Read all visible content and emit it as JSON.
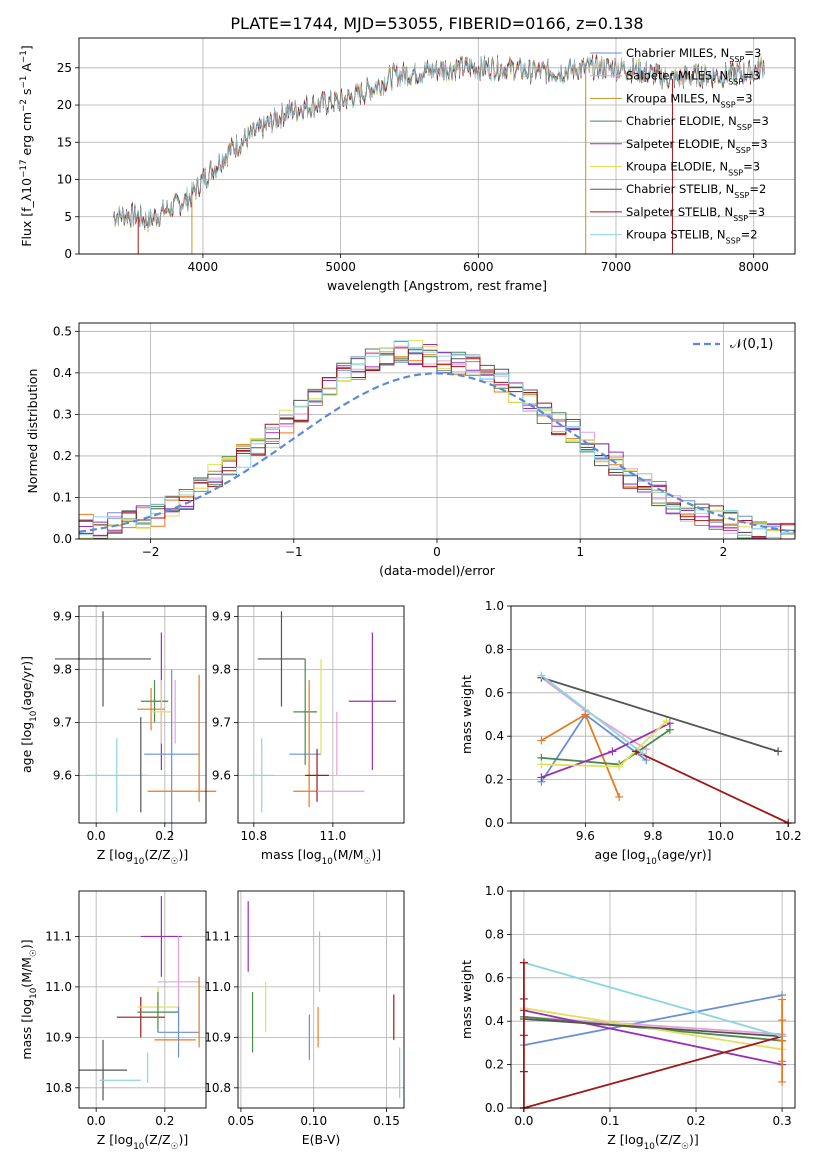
{
  "figure_title": "PLATE=1744, MJD=53055, FIBERID=0166, z=0.138",
  "colors": [
    "#6a8fd6",
    "#e8a0d8",
    "#c89024",
    "#4a8a4a",
    "#9b30b8",
    "#e0e05a",
    "#555555",
    "#a01818",
    "#8ad6e0"
  ],
  "legend_labels": [
    "Chabrier MILES, N_SSP=3",
    "Salpeter MILES, N_SSP=3",
    "Kroupa MILES, N_SSP=3",
    "Chabrier ELODIE, N_SSP=3",
    "Salpeter ELODIE, N_SSP=3",
    "Kroupa ELODIE, N_SSP=3",
    "Chabrier STELIB, N_SSP=2",
    "Salpeter STELIB, N_SSP=3",
    "Kroupa STELIB, N_SSP=2"
  ],
  "chart_data": [
    {
      "id": "spectrum",
      "type": "line",
      "xlabel": "wavelength [Angstrom, rest frame]",
      "ylabel": "Flux [f_λ10^-17 erg cm^-2 s^-1 A^-1]",
      "xlim": [
        3100,
        8300
      ],
      "ylim": [
        0,
        29
      ],
      "xticks": [
        4000,
        5000,
        6000,
        7000,
        8000
      ],
      "yticks": [
        0,
        5,
        10,
        15,
        20,
        25
      ],
      "continuum_x": [
        3350,
        3500,
        3600,
        3700,
        3800,
        3900,
        4000,
        4100,
        4200,
        4400,
        4600,
        4800,
        5000,
        5200,
        5400,
        5600,
        5800,
        6000,
        6200,
        6400,
        6600,
        6800,
        7000,
        7200,
        7400,
        7600,
        7800,
        8000,
        8080
      ],
      "continuum_y": [
        5.2,
        5.2,
        4.5,
        5.5,
        6.5,
        7.5,
        10,
        12,
        14,
        16.5,
        19,
        20,
        20.5,
        22,
        24,
        24.5,
        25,
        25,
        25,
        24.5,
        24.5,
        25,
        25,
        24.5,
        23.5,
        24,
        24,
        24.5,
        25.5
      ],
      "series": [
        "Chabrier MILES, N_SSP=3",
        "Salpeter MILES, N_SSP=3",
        "Kroupa MILES, N_SSP=3",
        "Chabrier ELODIE, N_SSP=3",
        "Salpeter ELODIE, N_SSP=3",
        "Kroupa ELODIE, N_SSP=3",
        "Chabrier STELIB, N_SSP=2",
        "Salpeter STELIB, N_SSP=3",
        "Kroupa STELIB, N_SSP=2"
      ],
      "drop_lines_x": [
        3530,
        3920,
        6780,
        7410
      ],
      "legend": "top-right"
    },
    {
      "id": "residuals",
      "type": "histogram",
      "xlabel": "(data-model)/error",
      "ylabel": "Normed distribution",
      "xlim": [
        -2.5,
        2.5
      ],
      "ylim": [
        0,
        0.52
      ],
      "xticks": [
        -2,
        -1,
        0,
        1,
        2
      ],
      "yticks": [
        0.0,
        0.1,
        0.2,
        0.3,
        0.4,
        0.5
      ],
      "bin_width": 0.1,
      "base_values": [
        0.03,
        0.03,
        0.04,
        0.04,
        0.05,
        0.06,
        0.08,
        0.1,
        0.12,
        0.15,
        0.17,
        0.2,
        0.23,
        0.25,
        0.28,
        0.31,
        0.34,
        0.36,
        0.4,
        0.41,
        0.43,
        0.44,
        0.45,
        0.45,
        0.44,
        0.43,
        0.42,
        0.42,
        0.4,
        0.38,
        0.35,
        0.33,
        0.3,
        0.28,
        0.26,
        0.23,
        0.2,
        0.18,
        0.15,
        0.13,
        0.11,
        0.09,
        0.07,
        0.06,
        0.05,
        0.04,
        0.03,
        0.03,
        0.02,
        0.02
      ],
      "normal_label": "𝒩(0,1)",
      "legend": "top-right"
    },
    {
      "id": "z_age",
      "type": "errorbar",
      "xlabel": "Z [log10(Z/Z☉)]",
      "ylabel": "age [log10(age/yr)]",
      "xlim": [
        -0.05,
        0.32
      ],
      "ylim": [
        9.51,
        9.92
      ],
      "xticks": [
        0.0,
        0.2
      ],
      "yticks": [
        9.6,
        9.7,
        9.8,
        9.9
      ],
      "points": [
        {
          "x": 0.02,
          "y": 9.82,
          "xerr": 0.14,
          "yerr": 0.09,
          "c": 6
        },
        {
          "x": 0.06,
          "y": 9.6,
          "xerr": 0.09,
          "yerr": 0.07,
          "c": 8
        },
        {
          "x": 0.13,
          "y": 9.62,
          "xerr": 0.0,
          "yerr": 0.09,
          "c": 6
        },
        {
          "x": 0.16,
          "y": 9.725,
          "xerr": 0.04,
          "yerr": 0.04,
          "c": 2
        },
        {
          "x": 0.17,
          "y": 9.74,
          "xerr": 0.04,
          "yerr": 0.04,
          "c": 3
        },
        {
          "x": 0.19,
          "y": 9.74,
          "xerr": 0.0,
          "yerr": 0.13,
          "c": 4
        },
        {
          "x": 0.19,
          "y": 9.72,
          "xerr": 0.03,
          "yerr": 0.06,
          "c": 5
        },
        {
          "x": 0.22,
          "y": 9.64,
          "xerr": 0.08,
          "yerr": 0.16,
          "c": 0
        },
        {
          "x": 0.23,
          "y": 9.72,
          "xerr": 0.0,
          "yerr": 0.06,
          "c": 1
        },
        {
          "x": 0.25,
          "y": 9.57,
          "xerr": 0.1,
          "yerr": 0.0,
          "c": 2
        },
        {
          "x": 0.3,
          "y": 9.67,
          "xerr": 0.0,
          "yerr": 0.12,
          "c": 2
        }
      ]
    },
    {
      "id": "mass_age",
      "type": "errorbar",
      "xlabel": "mass [log10(M/M☉)]",
      "ylabel": "",
      "xlim": [
        10.76,
        11.18
      ],
      "ylim": [
        9.51,
        9.92
      ],
      "xticks": [
        10.8,
        11.0
      ],
      "yticks": [
        9.6,
        9.7,
        9.8,
        9.9
      ],
      "points": [
        {
          "x": 10.82,
          "y": 9.6,
          "xerr": 0.03,
          "yerr": 0.07,
          "c": 8
        },
        {
          "x": 10.87,
          "y": 9.82,
          "xerr": 0.06,
          "yerr": 0.09,
          "c": 6
        },
        {
          "x": 10.93,
          "y": 9.57,
          "xerr": 0.03,
          "yerr": 0.0,
          "c": 2
        },
        {
          "x": 10.93,
          "y": 9.64,
          "xerr": 0.04,
          "yerr": 0.0,
          "c": 0
        },
        {
          "x": 10.93,
          "y": 9.72,
          "xerr": 0.03,
          "yerr": 0.1,
          "c": 3
        },
        {
          "x": 10.94,
          "y": 9.66,
          "xerr": 0.0,
          "yerr": 0.12,
          "c": 2
        },
        {
          "x": 10.96,
          "y": 9.6,
          "xerr": 0.03,
          "yerr": 0.05,
          "c": 7
        },
        {
          "x": 10.97,
          "y": 9.73,
          "xerr": 0.0,
          "yerr": 0.09,
          "c": 5
        },
        {
          "x": 11.02,
          "y": 9.57,
          "xerr": 0.06,
          "yerr": 0.0,
          "c": 1
        },
        {
          "x": 11.01,
          "y": 9.66,
          "xerr": 0.0,
          "yerr": 0.06,
          "c": 1
        },
        {
          "x": 11.1,
          "y": 9.74,
          "xerr": 0.06,
          "yerr": 0.13,
          "c": 4
        }
      ]
    },
    {
      "id": "age_weight",
      "type": "line",
      "xlabel": "age [log10(age/yr)]",
      "ylabel": "mass weight",
      "xlim": [
        9.38,
        10.22
      ],
      "ylim": [
        0,
        1
      ],
      "xticks": [
        9.6,
        9.8,
        10.0,
        10.2
      ],
      "yticks": [
        0.0,
        0.2,
        0.4,
        0.6,
        0.8,
        1.0
      ],
      "series": [
        {
          "c": 0,
          "x": [
            9.47,
            9.6,
            9.78
          ],
          "y": [
            0.19,
            0.5,
            0.29
          ]
        },
        {
          "c": 1,
          "x": [
            9.47,
            9.6,
            9.78
          ],
          "y": [
            0.67,
            0.52,
            0.34
          ]
        },
        {
          "c": 2,
          "x": [
            9.47,
            9.6,
            9.7
          ],
          "y": [
            0.38,
            0.5,
            0.12
          ]
        },
        {
          "c": 3,
          "x": [
            9.47,
            9.7,
            9.85
          ],
          "y": [
            0.3,
            0.27,
            0.43
          ]
        },
        {
          "c": 4,
          "x": [
            9.47,
            9.68,
            9.85
          ],
          "y": [
            0.21,
            0.33,
            0.46
          ]
        },
        {
          "c": 5,
          "x": [
            9.47,
            9.7,
            9.84
          ],
          "y": [
            0.27,
            0.26,
            0.47
          ]
        },
        {
          "c": 6,
          "x": [
            9.47,
            10.17
          ],
          "y": [
            0.67,
            0.33
          ]
        },
        {
          "c": 7,
          "x": [
            9.75,
            10.2
          ],
          "y": [
            0.33,
            0.0
          ]
        },
        {
          "c": 8,
          "x": [
            9.47,
            9.77
          ],
          "y": [
            0.68,
            0.32
          ]
        }
      ]
    },
    {
      "id": "z_mass",
      "type": "errorbar",
      "xlabel": "Z [log10(Z/Z☉)]",
      "ylabel": "mass [log10(M/M☉)]",
      "xlim": [
        -0.05,
        0.32
      ],
      "ylim": [
        10.76,
        11.19
      ],
      "xticks": [
        0.0,
        0.2
      ],
      "yticks": [
        10.8,
        10.9,
        11.0,
        11.1
      ],
      "points": [
        {
          "x": 0.02,
          "y": 10.835,
          "xerr": 0.07,
          "yerr": 0.06,
          "c": 6
        },
        {
          "x": 0.07,
          "y": 10.815,
          "xerr": 0.06,
          "yerr": 0.0,
          "c": 8
        },
        {
          "x": 0.15,
          "y": 10.84,
          "xerr": 0.0,
          "yerr": 0.03,
          "c": 8
        },
        {
          "x": 0.13,
          "y": 10.94,
          "xerr": 0.07,
          "yerr": 0.04,
          "c": 7
        },
        {
          "x": 0.18,
          "y": 10.96,
          "xerr": 0.06,
          "yerr": 0.04,
          "c": 5
        },
        {
          "x": 0.18,
          "y": 10.95,
          "xerr": 0.06,
          "yerr": 0.04,
          "c": 3
        },
        {
          "x": 0.19,
          "y": 11.1,
          "xerr": 0.06,
          "yerr": 0.08,
          "c": 4
        },
        {
          "x": 0.24,
          "y": 11.01,
          "xerr": 0.06,
          "yerr": 0.09,
          "c": 1
        },
        {
          "x": 0.24,
          "y": 10.91,
          "xerr": 0.06,
          "yerr": 0.05,
          "c": 0
        },
        {
          "x": 0.23,
          "y": 10.895,
          "xerr": 0.06,
          "yerr": 0.0,
          "c": 2
        },
        {
          "x": 0.3,
          "y": 10.95,
          "xerr": 0.0,
          "yerr": 0.07,
          "c": 2
        }
      ]
    },
    {
      "id": "ebv_mass",
      "type": "errorbar",
      "xlabel": "E(B-V)",
      "ylabel": "",
      "xlim": [
        0.048,
        0.162
      ],
      "ylim": [
        10.76,
        11.19
      ],
      "xticks": [
        0.05,
        0.1,
        0.15
      ],
      "yticks": [
        10.8,
        10.9,
        11.0,
        11.1
      ],
      "points": [
        {
          "x": 0.055,
          "y": 11.1,
          "xerr": 0,
          "yerr": 0.07,
          "c": 4
        },
        {
          "x": 0.058,
          "y": 10.93,
          "xerr": 0,
          "yerr": 0.06,
          "c": 3
        },
        {
          "x": 0.067,
          "y": 10.96,
          "xerr": 0,
          "yerr": 0.05,
          "c": 5
        },
        {
          "x": 0.097,
          "y": 10.9,
          "xerr": 0,
          "yerr": 0.045,
          "c": 0
        },
        {
          "x": 0.103,
          "y": 10.92,
          "xerr": 0,
          "yerr": 0.04,
          "c": 2
        },
        {
          "x": 0.104,
          "y": 11.05,
          "xerr": 0,
          "yerr": 0.06,
          "c": 1
        },
        {
          "x": 0.155,
          "y": 10.94,
          "xerr": 0,
          "yerr": 0.045,
          "c": 7
        },
        {
          "x": 0.159,
          "y": 10.83,
          "xerr": 0,
          "yerr": 0.05,
          "c": 8
        }
      ]
    },
    {
      "id": "z_weight",
      "type": "line",
      "xlabel": "Z [log10(Z/Z☉)]",
      "ylabel": "mass weight",
      "xlim": [
        -0.015,
        0.315
      ],
      "ylim": [
        0,
        1
      ],
      "xticks": [
        0.0,
        0.1,
        0.2,
        0.3
      ],
      "yticks": [
        0.0,
        0.2,
        0.4,
        0.6,
        0.8,
        1.0
      ],
      "series": [
        {
          "c": 0,
          "x": [
            0,
            0.3
          ],
          "y": [
            0.29,
            0.52
          ]
        },
        {
          "c": 1,
          "x": [
            0,
            0.3
          ],
          "y": [
            0.42,
            0.34
          ]
        },
        {
          "c": 3,
          "x": [
            0,
            0.3
          ],
          "y": [
            0.42,
            0.31
          ]
        },
        {
          "c": 4,
          "x": [
            0,
            0.3
          ],
          "y": [
            0.45,
            0.2
          ]
        },
        {
          "c": 5,
          "x": [
            0,
            0.3
          ],
          "y": [
            0.46,
            0.27
          ]
        },
        {
          "c": 6,
          "x": [
            0,
            0.3
          ],
          "y": [
            0.41,
            0.33
          ]
        },
        {
          "c": 7,
          "x": [
            0,
            0.3
          ],
          "y": [
            0.0,
            0.33
          ]
        },
        {
          "c": 8,
          "x": [
            0,
            0.3
          ],
          "y": [
            0.67,
            0.33
          ]
        }
      ],
      "vertical_stacks": [
        {
          "c": 7,
          "x": 0.0,
          "y": [
            0.0,
            0.67
          ]
        },
        {
          "c": 2,
          "x": 0.3,
          "y": [
            0.12,
            0.5
          ]
        }
      ]
    }
  ]
}
